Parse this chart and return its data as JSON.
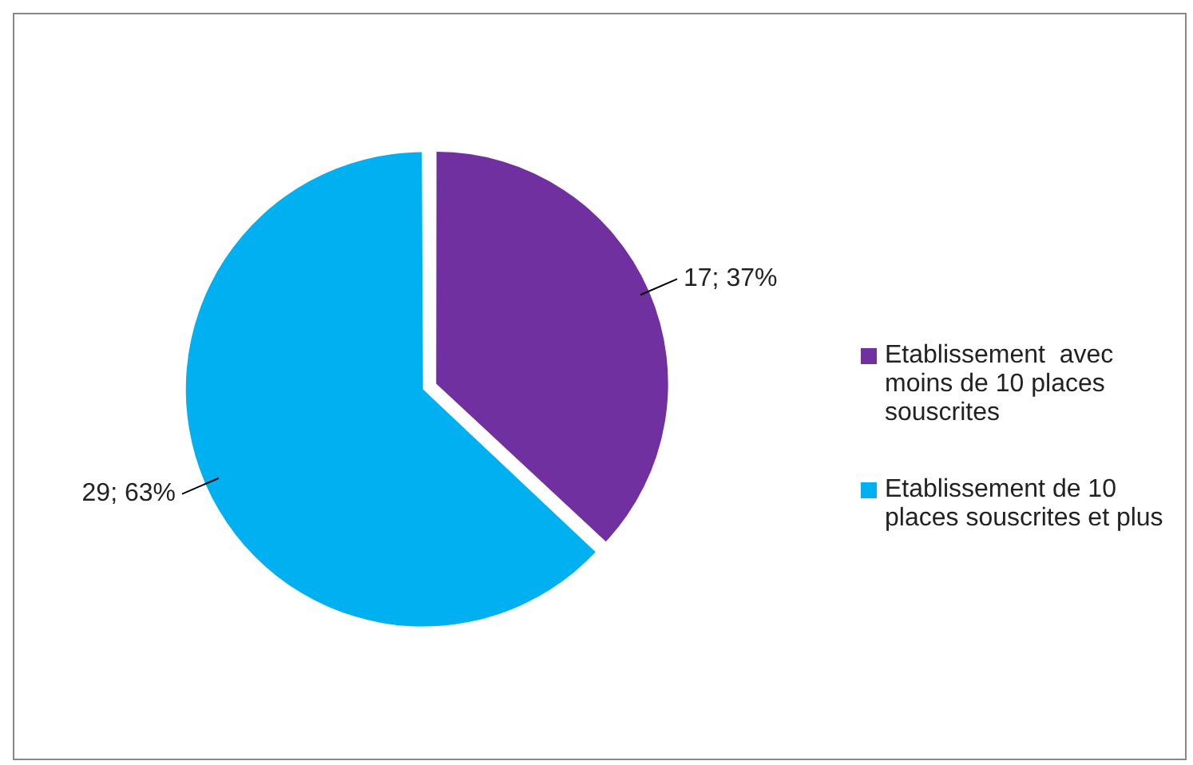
{
  "chart_data": {
    "type": "pie",
    "categories": [
      "Etablissement  avec moins de 10 places souscrites",
      "Etablissement de 10 places souscrites et plus"
    ],
    "values": [
      17,
      29
    ],
    "colors": [
      "#7030a0",
      "#00b0f0"
    ],
    "value_labels": [
      "17; 37%",
      "29; 63%"
    ],
    "legend": "right"
  }
}
